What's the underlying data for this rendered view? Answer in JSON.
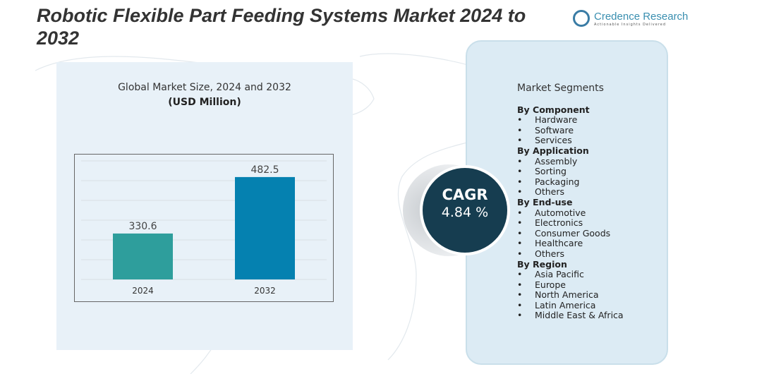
{
  "title": "Robotic Flexible Part Feeding Systems Market 2024 to 2032",
  "logo": {
    "name": "Credence Research",
    "tagline": "Actionable Insights Delivered"
  },
  "chart_data": {
    "type": "bar",
    "title": "Global Market Size, 2024 and 2032",
    "unit": "(USD Million)",
    "categories": [
      "2024",
      "2032"
    ],
    "values": [
      330.6,
      482.5
    ],
    "data_labels": [
      "330.6",
      "482.5"
    ],
    "colors": [
      "#2e9e9c",
      "#0581b0"
    ],
    "grid": true
  },
  "cagr": {
    "label": "CAGR",
    "value": "4.84  %"
  },
  "segments": {
    "title": "Market Segments",
    "groups": [
      {
        "heading": "By Component",
        "items": [
          "Hardware",
          "Software",
          "Services"
        ]
      },
      {
        "heading": "By  Application",
        "items": [
          "Assembly",
          "Sorting",
          "Packaging",
          "Others"
        ]
      },
      {
        "heading": "By  End-use",
        "items": [
          "Automotive",
          "Electronics",
          "Consumer Goods",
          "Healthcare",
          "Others"
        ]
      },
      {
        "heading": "By Region",
        "items": [
          "Asia Pacific",
          "Europe",
          "North America",
          "Latin America",
          "Middle East & Africa"
        ]
      }
    ]
  }
}
